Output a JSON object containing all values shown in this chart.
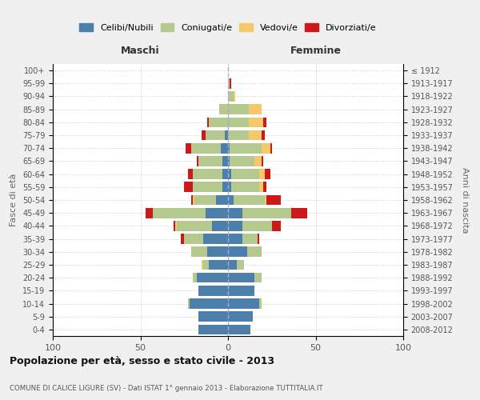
{
  "age_groups": [
    "0-4",
    "5-9",
    "10-14",
    "15-19",
    "20-24",
    "25-29",
    "30-34",
    "35-39",
    "40-44",
    "45-49",
    "50-54",
    "55-59",
    "60-64",
    "65-69",
    "70-74",
    "75-79",
    "80-84",
    "85-89",
    "90-94",
    "95-99",
    "100+"
  ],
  "birth_years": [
    "2008-2012",
    "2003-2007",
    "1998-2002",
    "1993-1997",
    "1988-1992",
    "1983-1987",
    "1978-1982",
    "1973-1977",
    "1968-1972",
    "1963-1967",
    "1958-1962",
    "1953-1957",
    "1948-1952",
    "1943-1947",
    "1938-1942",
    "1933-1937",
    "1928-1932",
    "1923-1927",
    "1918-1922",
    "1913-1917",
    "≤ 1912"
  ],
  "colors": {
    "celibi": "#4d7fac",
    "coniugati": "#b5c98e",
    "vedovi": "#f5c96a",
    "divorziati": "#cc1a1a"
  },
  "maschi": {
    "celibi": [
      17,
      17,
      22,
      17,
      18,
      11,
      12,
      14,
      9,
      13,
      7,
      3,
      3,
      3,
      4,
      2,
      0,
      0,
      0,
      0,
      0
    ],
    "coniugati": [
      0,
      0,
      1,
      0,
      2,
      3,
      9,
      11,
      20,
      30,
      12,
      17,
      17,
      14,
      17,
      11,
      11,
      5,
      0,
      0,
      0
    ],
    "vedovi": [
      0,
      0,
      0,
      0,
      0,
      1,
      0,
      0,
      1,
      0,
      1,
      0,
      0,
      0,
      0,
      0,
      0,
      0,
      0,
      0,
      0
    ],
    "divorziati": [
      0,
      0,
      0,
      0,
      0,
      0,
      0,
      2,
      1,
      4,
      1,
      5,
      3,
      1,
      3,
      2,
      1,
      0,
      0,
      0,
      0
    ]
  },
  "femmine": {
    "celibi": [
      13,
      14,
      18,
      15,
      15,
      5,
      11,
      8,
      8,
      8,
      3,
      2,
      2,
      1,
      1,
      0,
      0,
      0,
      0,
      0,
      0
    ],
    "coniugati": [
      0,
      0,
      1,
      0,
      4,
      4,
      8,
      9,
      17,
      28,
      18,
      16,
      16,
      14,
      18,
      12,
      12,
      12,
      3,
      1,
      0
    ],
    "vedovi": [
      0,
      0,
      0,
      0,
      0,
      0,
      0,
      0,
      0,
      0,
      1,
      2,
      3,
      4,
      5,
      7,
      8,
      7,
      1,
      0,
      0
    ],
    "divorziati": [
      0,
      0,
      0,
      0,
      0,
      0,
      0,
      1,
      5,
      9,
      8,
      2,
      3,
      1,
      1,
      2,
      2,
      0,
      0,
      1,
      0
    ]
  },
  "xlim": [
    -100,
    100
  ],
  "xticks": [
    -100,
    -50,
    0,
    50,
    100
  ],
  "xticklabels": [
    "100",
    "50",
    "0",
    "50",
    "100"
  ],
  "title": "Popolazione per età, sesso e stato civile - 2013",
  "subtitle": "COMUNE DI CALICE LIGURE (SV) - Dati ISTAT 1° gennaio 2013 - Elaborazione TUTTITALIA.IT",
  "ylabel_left": "Fasce di età",
  "ylabel_right": "Anni di nascita",
  "label_maschi": "Maschi",
  "label_femmine": "Femmine",
  "legend_labels": [
    "Celibi/Nubili",
    "Coniugati/e",
    "Vedovi/e",
    "Divorziati/e"
  ],
  "bg_color": "#f0f0f0",
  "plot_bg_color": "#ffffff"
}
